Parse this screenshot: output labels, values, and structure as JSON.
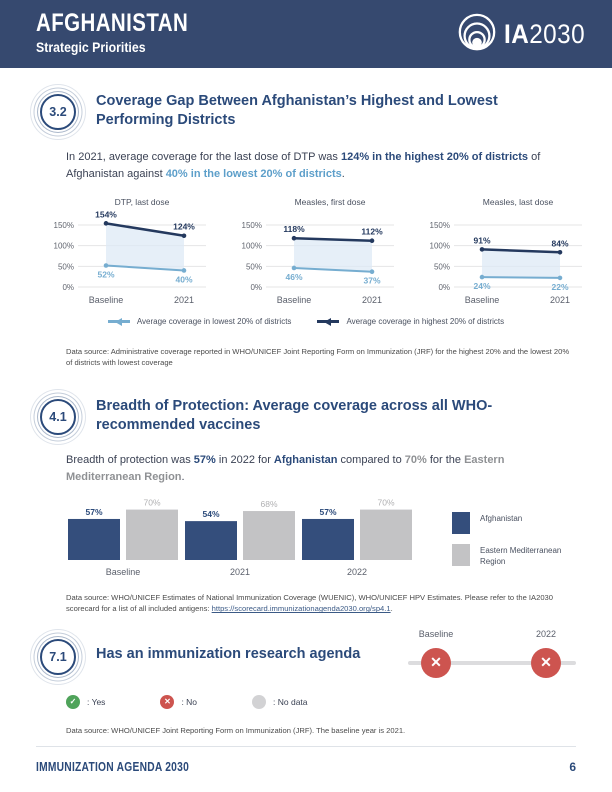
{
  "header": {
    "country": "AFGHANISTAN",
    "subtitle": "Strategic Priorities",
    "logo_bold": "IA",
    "logo_year": "2030"
  },
  "colors": {
    "header_bg": "#36496f",
    "navy": "#2b4a7a",
    "light_blue": "#5d9fca",
    "line_dark": "#24395e",
    "line_light": "#76add0",
    "bar_navy": "#344e7c",
    "bar_gray": "#c3c3c5",
    "status_red": "#cd544f",
    "status_green": "#4fa35a",
    "status_gray": "#d2d2d4"
  },
  "section_32": {
    "badge": "3.2",
    "title": "Coverage Gap Between Afghanistan’s Highest and Lowest Performing Districts",
    "paragraph": [
      {
        "t": "In 2021, average coverage for the last dose of DTP was ",
        "s": "n"
      },
      {
        "t": "124% in the highest 20% of districts",
        "s": "navy"
      },
      {
        "t": " of Afghanistan against ",
        "s": "n"
      },
      {
        "t": "40% in the lowest 20% of districts",
        "s": "blue"
      },
      {
        "t": ".",
        "s": "n"
      }
    ],
    "legend": [
      {
        "label": "Average coverage in lowest 20% of districts",
        "color": "#76add0"
      },
      {
        "label": "Average coverage in highest 20% of districts",
        "color": "#24395e"
      }
    ],
    "datasource": [
      {
        "t": "Data source: Administrative coverage reported in WHO/UNICEF Joint Reporting Form on Immunization (JRF) for the highest 20% and the lowest 20% of districts with lowest coverage",
        "s": "n"
      }
    ]
  },
  "section_41": {
    "badge": "4.1",
    "title": "Breadth of Protection: Average coverage across all WHO-recommended vaccines",
    "paragraph": [
      {
        "t": "Breadth of protection was ",
        "s": "n"
      },
      {
        "t": "57%",
        "s": "navy"
      },
      {
        "t": " in 2022 for ",
        "s": "n"
      },
      {
        "t": "Afghanistan",
        "s": "navy"
      },
      {
        "t": " compared to ",
        "s": "n"
      },
      {
        "t": "70%",
        "s": "gray"
      },
      {
        "t": " for the ",
        "s": "n"
      },
      {
        "t": "Eastern Mediterranean Region",
        "s": "gray"
      },
      {
        "t": ".",
        "s": "n"
      }
    ],
    "legend": [
      {
        "label": "Afghanistan",
        "color": "#344e7c"
      },
      {
        "label": "Eastern Mediterranean Region",
        "color": "#c3c3c5"
      }
    ],
    "datasource": [
      {
        "t": "Data source: WHO/UNICEF Estimates of National Immunization Coverage (WUENIC), WHO/UNICEF HPV Estimates. Please refer to the IA2030 scorecard for a list of all included antigens: ",
        "s": "n"
      },
      {
        "t": "https://scorecard.immunizationagenda2030.org/sp4.1",
        "s": "link"
      },
      {
        "t": ".",
        "s": "n"
      }
    ]
  },
  "section_71": {
    "badge": "7.1",
    "title": "Has an immunization research agenda",
    "status_legend": [
      {
        "icon": "check",
        "label": ": Yes"
      },
      {
        "icon": "x",
        "label": ": No"
      },
      {
        "icon": "none",
        "label": ": No data"
      }
    ],
    "datasource": [
      {
        "t": "Data source: WHO/UNICEF Joint Reporting Form on Immunization (JRF). The baseline year is 2021.",
        "s": "n"
      }
    ]
  },
  "chart_data": [
    {
      "type": "line",
      "title": "DTP, last dose",
      "x": [
        "Baseline",
        "2021"
      ],
      "series": [
        {
          "name": "Average coverage in highest 20% of districts",
          "values": [
            154,
            124
          ],
          "color": "#24395e"
        },
        {
          "name": "Average coverage in lowest 20% of districts",
          "values": [
            52,
            40
          ],
          "color": "#76add0"
        }
      ],
      "ylim": [
        0,
        150
      ],
      "yticks": [
        0,
        50,
        100,
        150
      ],
      "grid": true,
      "area_fill": "#dde9f5"
    },
    {
      "type": "line",
      "title": "Measles, first dose",
      "x": [
        "Baseline",
        "2021"
      ],
      "series": [
        {
          "name": "Average coverage in highest 20% of districts",
          "values": [
            118,
            112
          ],
          "color": "#24395e"
        },
        {
          "name": "Average coverage in lowest 20% of districts",
          "values": [
            46,
            37
          ],
          "color": "#76add0"
        }
      ],
      "ylim": [
        0,
        150
      ],
      "yticks": [
        0,
        50,
        100,
        150
      ],
      "grid": true,
      "area_fill": "#dde9f5"
    },
    {
      "type": "line",
      "title": "Measles, last dose",
      "x": [
        "Baseline",
        "2021"
      ],
      "series": [
        {
          "name": "Average coverage in highest 20% of districts",
          "values": [
            91,
            84
          ],
          "color": "#24395e"
        },
        {
          "name": "Average coverage in lowest 20% of districts",
          "values": [
            24,
            22
          ],
          "color": "#76add0"
        }
      ],
      "ylim": [
        0,
        150
      ],
      "yticks": [
        0,
        50,
        100,
        150
      ],
      "grid": true,
      "area_fill": "#dde9f5"
    },
    {
      "type": "bar",
      "title": "Breadth of protection",
      "categories": [
        "Baseline",
        "2021",
        "2022"
      ],
      "series": [
        {
          "name": "Afghanistan",
          "values": [
            57,
            54,
            57
          ],
          "color": "#344e7c"
        },
        {
          "name": "Eastern Mediterranean Region",
          "values": [
            70,
            68,
            70
          ],
          "color": "#c3c3c5"
        }
      ],
      "ylim": [
        0,
        80
      ],
      "grid": false,
      "legend_position": "right"
    },
    {
      "type": "indicator",
      "title": "Has an immunization research agenda",
      "points": [
        {
          "label": "Baseline",
          "status": "No"
        },
        {
          "label": "2022",
          "status": "No"
        }
      ]
    }
  ],
  "footer": {
    "title": "IMMUNIZATION AGENDA 2030",
    "page_number": "6"
  }
}
